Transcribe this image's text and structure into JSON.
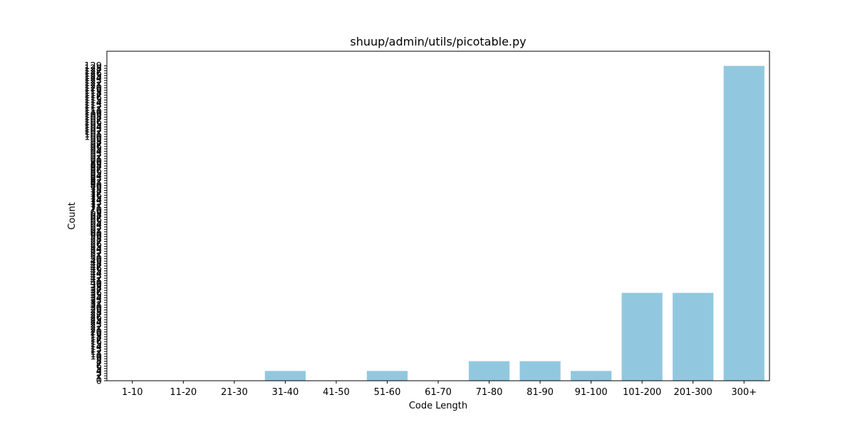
{
  "chart_data": {
    "type": "bar",
    "title": "shuup/admin/utils/picotable.py",
    "xlabel": "Code Length",
    "ylabel": "Count",
    "categories": [
      "1-10",
      "11-20",
      "21-30",
      "31-40",
      "41-50",
      "51-60",
      "61-70",
      "71-80",
      "81-90",
      "91-100",
      "101-200",
      "201-300",
      "300+"
    ],
    "values": [
      0,
      0,
      0,
      4,
      0,
      4,
      0,
      8,
      8,
      4,
      36,
      36,
      129
    ],
    "ylim": [
      0,
      135
    ],
    "yticks": [
      0,
      1,
      2,
      3,
      4,
      5,
      6,
      7,
      8,
      9,
      10,
      11,
      12,
      13,
      14,
      15,
      16,
      17,
      18,
      19,
      20,
      21,
      22,
      23,
      24,
      25,
      26,
      27,
      28,
      29,
      30,
      31,
      32,
      33,
      34,
      35,
      36,
      37,
      38,
      39,
      40,
      41,
      42,
      43,
      44,
      45,
      46,
      47,
      48,
      49,
      50,
      51,
      52,
      53,
      54,
      55,
      56,
      57,
      58,
      59,
      60,
      61,
      62,
      63,
      64,
      65,
      66,
      67,
      68,
      69,
      70,
      71,
      72,
      73,
      74,
      75,
      76,
      77,
      78,
      79,
      80,
      81,
      82,
      83,
      84,
      85,
      86,
      87,
      88,
      89,
      90,
      91,
      92,
      93,
      94,
      95,
      96,
      97,
      98,
      99,
      100,
      101,
      102,
      103,
      104,
      105,
      106,
      107,
      108,
      109,
      110,
      111,
      112,
      113,
      114,
      115,
      116,
      117,
      118,
      119,
      120,
      121,
      122,
      123,
      124,
      125,
      126,
      127,
      128,
      129
    ],
    "bar_color": "#92c8df",
    "grid": false,
    "legend": "none"
  }
}
